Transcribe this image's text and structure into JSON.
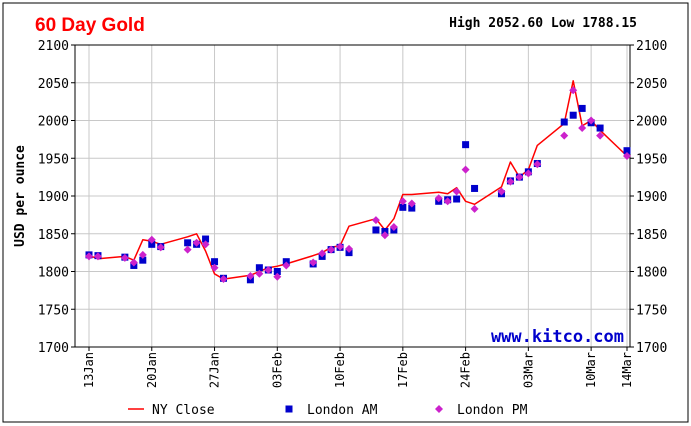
{
  "header": {
    "title": "60 Day Gold",
    "high_low": "High 2052.60 Low 1788.15"
  },
  "watermark": "www.kitco.com",
  "colors": {
    "title": "#ff0000",
    "ny_close": "#ff0000",
    "london_am": "#0000cc",
    "london_pm": "#cc22cc",
    "watermark": "#0000cc",
    "grid": "#c8c8c8"
  },
  "chart_data": {
    "type": "line",
    "title": "60 Day Gold",
    "ylabel": "USD per ounce",
    "xlabel": "",
    "ylim": [
      1700,
      2100
    ],
    "yticks": [
      1700,
      1750,
      1800,
      1850,
      1900,
      1950,
      2000,
      2050,
      2100
    ],
    "xlim": [
      "2022-01-13",
      "2022-03-14"
    ],
    "xtick_dates": [
      "2022-01-13",
      "2022-01-20",
      "2022-01-27",
      "2022-02-03",
      "2022-02-10",
      "2022-02-17",
      "2022-02-24",
      "2022-03-03",
      "2022-03-10",
      "2022-03-14"
    ],
    "xtick_labels": [
      "13Jan",
      "20Jan",
      "27Jan",
      "03Feb",
      "10Feb",
      "17Feb",
      "24Feb",
      "03Mar",
      "10Mar",
      "14Mar"
    ],
    "grid": true,
    "legend": {
      "position": "bottom"
    },
    "series": [
      {
        "name": "NY Close",
        "kind": "line",
        "x": [
          "2022-01-13",
          "2022-01-14",
          "2022-01-17",
          "2022-01-18",
          "2022-01-19",
          "2022-01-20",
          "2022-01-21",
          "2022-01-24",
          "2022-01-25",
          "2022-01-26",
          "2022-01-27",
          "2022-01-28",
          "2022-01-31",
          "2022-02-01",
          "2022-02-02",
          "2022-02-03",
          "2022-02-04",
          "2022-02-07",
          "2022-02-08",
          "2022-02-09",
          "2022-02-10",
          "2022-02-11",
          "2022-02-14",
          "2022-02-15",
          "2022-02-16",
          "2022-02-17",
          "2022-02-18",
          "2022-02-21",
          "2022-02-22",
          "2022-02-23",
          "2022-02-24",
          "2022-02-25",
          "2022-02-28",
          "2022-03-01",
          "2022-03-02",
          "2022-03-03",
          "2022-03-04",
          "2022-03-07",
          "2022-03-08",
          "2022-03-09",
          "2022-03-10",
          "2022-03-11",
          "2022-03-14"
        ],
        "values": [
          1821,
          1817,
          1820,
          1815,
          1842,
          1840,
          1836,
          1846,
          1850,
          1827,
          1797,
          1790,
          1795,
          1800,
          1805,
          1807,
          1810,
          1821,
          1825,
          1832,
          1834,
          1860,
          1870,
          1855,
          1870,
          1902,
          1902,
          1905,
          1903,
          1911,
          1893,
          1889,
          1912,
          1945,
          1925,
          1935,
          1967,
          1996,
          2052.6,
          1993,
          2000,
          1987,
          1953
        ]
      },
      {
        "name": "London AM",
        "kind": "square",
        "x": [
          "2022-01-13",
          "2022-01-14",
          "2022-01-17",
          "2022-01-18",
          "2022-01-19",
          "2022-01-20",
          "2022-01-21",
          "2022-01-24",
          "2022-01-25",
          "2022-01-26",
          "2022-01-27",
          "2022-01-28",
          "2022-01-31",
          "2022-02-01",
          "2022-02-02",
          "2022-02-03",
          "2022-02-04",
          "2022-02-07",
          "2022-02-08",
          "2022-02-09",
          "2022-02-10",
          "2022-02-11",
          "2022-02-14",
          "2022-02-15",
          "2022-02-16",
          "2022-02-17",
          "2022-02-18",
          "2022-02-21",
          "2022-02-22",
          "2022-02-23",
          "2022-02-24",
          "2022-02-25",
          "2022-02-28",
          "2022-03-01",
          "2022-03-02",
          "2022-03-03",
          "2022-03-04",
          "2022-03-07",
          "2022-03-08",
          "2022-03-09",
          "2022-03-10",
          "2022-03-11",
          "2022-03-14"
        ],
        "values": [
          1822,
          1821,
          1819,
          1808,
          1815,
          1836,
          1833,
          1838,
          1836,
          1843,
          1813,
          1791,
          1789,
          1805,
          1802,
          1800,
          1813,
          1810,
          1820,
          1829,
          1832,
          1825,
          1855,
          1853,
          1855,
          1885,
          1884,
          1893,
          1895,
          1896,
          1968,
          1910,
          1903,
          1920,
          1925,
          1932,
          1943,
          1998,
          2007,
          2016,
          1997,
          1990,
          1960
        ]
      },
      {
        "name": "London PM",
        "kind": "diamond",
        "x": [
          "2022-01-13",
          "2022-01-14",
          "2022-01-17",
          "2022-01-18",
          "2022-01-19",
          "2022-01-20",
          "2022-01-21",
          "2022-01-24",
          "2022-01-25",
          "2022-01-26",
          "2022-01-27",
          "2022-01-28",
          "2022-01-31",
          "2022-02-01",
          "2022-02-02",
          "2022-02-03",
          "2022-02-04",
          "2022-02-07",
          "2022-02-08",
          "2022-02-09",
          "2022-02-10",
          "2022-02-11",
          "2022-02-14",
          "2022-02-15",
          "2022-02-16",
          "2022-02-17",
          "2022-02-18",
          "2022-02-21",
          "2022-02-22",
          "2022-02-23",
          "2022-02-24",
          "2022-02-25",
          "2022-02-28",
          "2022-03-01",
          "2022-03-02",
          "2022-03-03",
          "2022-03-04",
          "2022-03-07",
          "2022-03-08",
          "2022-03-09",
          "2022-03-10",
          "2022-03-11",
          "2022-03-14"
        ],
        "values": [
          1820,
          1820,
          1818,
          1812,
          1822,
          1842,
          1832,
          1829,
          1838,
          1836,
          1805,
          1790,
          1794,
          1797,
          1802,
          1793,
          1808,
          1812,
          1824,
          1829,
          1833,
          1830,
          1868,
          1848,
          1859,
          1893,
          1890,
          1897,
          1893,
          1906,
          1935,
          1883,
          1906,
          1919,
          1925,
          1930,
          1942,
          1980,
          2040,
          1990,
          2000,
          1980,
          1953
        ]
      }
    ]
  }
}
